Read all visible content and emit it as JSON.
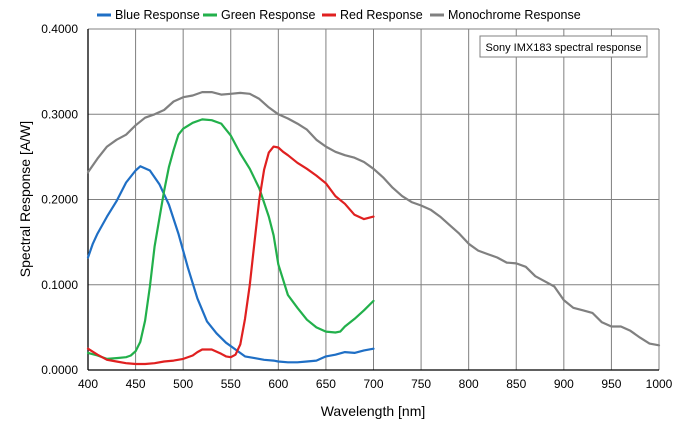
{
  "chart_data": {
    "type": "line",
    "title": "",
    "annotation": "Sony IMX183 spectral response",
    "xlabel": "Wavelength [nm]",
    "ylabel": "Spectral Response [A/W]",
    "xlim": [
      400,
      1000
    ],
    "ylim": [
      0,
      0.4
    ],
    "x_ticks": [
      400,
      450,
      500,
      550,
      600,
      650,
      700,
      750,
      800,
      850,
      900,
      950,
      1000
    ],
    "y_ticks": [
      "0.0000",
      "0.1000",
      "0.2000",
      "0.3000",
      "0.4000"
    ],
    "grid": true,
    "legend_position": "top",
    "series": [
      {
        "name": "Blue Response",
        "color": "#1f6fc5",
        "points": [
          [
            400,
            0.132
          ],
          [
            405,
            0.148
          ],
          [
            410,
            0.16
          ],
          [
            420,
            0.18
          ],
          [
            430,
            0.198
          ],
          [
            440,
            0.22
          ],
          [
            450,
            0.234
          ],
          [
            455,
            0.239
          ],
          [
            465,
            0.234
          ],
          [
            475,
            0.218
          ],
          [
            485,
            0.194
          ],
          [
            495,
            0.16
          ],
          [
            505,
            0.12
          ],
          [
            515,
            0.084
          ],
          [
            525,
            0.057
          ],
          [
            535,
            0.043
          ],
          [
            545,
            0.032
          ],
          [
            555,
            0.024
          ],
          [
            565,
            0.016
          ],
          [
            575,
            0.014
          ],
          [
            585,
            0.012
          ],
          [
            595,
            0.011
          ],
          [
            600,
            0.01
          ],
          [
            610,
            0.009
          ],
          [
            620,
            0.009
          ],
          [
            630,
            0.01
          ],
          [
            640,
            0.011
          ],
          [
            650,
            0.016
          ],
          [
            660,
            0.018
          ],
          [
            670,
            0.021
          ],
          [
            680,
            0.02
          ],
          [
            690,
            0.023
          ],
          [
            700,
            0.025
          ]
        ]
      },
      {
        "name": "Green Response",
        "color": "#22b04b",
        "points": [
          [
            400,
            0.02
          ],
          [
            410,
            0.017
          ],
          [
            420,
            0.013
          ],
          [
            430,
            0.014
          ],
          [
            440,
            0.015
          ],
          [
            445,
            0.017
          ],
          [
            450,
            0.022
          ],
          [
            455,
            0.033
          ],
          [
            460,
            0.058
          ],
          [
            465,
            0.098
          ],
          [
            470,
            0.145
          ],
          [
            475,
            0.178
          ],
          [
            480,
            0.21
          ],
          [
            485,
            0.238
          ],
          [
            490,
            0.258
          ],
          [
            495,
            0.276
          ],
          [
            500,
            0.283
          ],
          [
            510,
            0.29
          ],
          [
            520,
            0.294
          ],
          [
            530,
            0.293
          ],
          [
            540,
            0.289
          ],
          [
            550,
            0.275
          ],
          [
            560,
            0.254
          ],
          [
            570,
            0.236
          ],
          [
            580,
            0.213
          ],
          [
            590,
            0.18
          ],
          [
            595,
            0.158
          ],
          [
            600,
            0.124
          ],
          [
            610,
            0.088
          ],
          [
            620,
            0.073
          ],
          [
            630,
            0.059
          ],
          [
            640,
            0.05
          ],
          [
            650,
            0.045
          ],
          [
            660,
            0.044
          ],
          [
            665,
            0.045
          ],
          [
            670,
            0.051
          ],
          [
            680,
            0.06
          ],
          [
            690,
            0.07
          ],
          [
            700,
            0.081
          ]
        ]
      },
      {
        "name": "Red Response",
        "color": "#e02020",
        "points": [
          [
            400,
            0.025
          ],
          [
            410,
            0.018
          ],
          [
            420,
            0.012
          ],
          [
            430,
            0.01
          ],
          [
            440,
            0.008
          ],
          [
            450,
            0.007
          ],
          [
            460,
            0.007
          ],
          [
            470,
            0.008
          ],
          [
            480,
            0.01
          ],
          [
            490,
            0.011
          ],
          [
            500,
            0.013
          ],
          [
            510,
            0.017
          ],
          [
            515,
            0.021
          ],
          [
            520,
            0.024
          ],
          [
            530,
            0.024
          ],
          [
            540,
            0.019
          ],
          [
            545,
            0.016
          ],
          [
            550,
            0.015
          ],
          [
            555,
            0.018
          ],
          [
            560,
            0.03
          ],
          [
            565,
            0.06
          ],
          [
            570,
            0.1
          ],
          [
            575,
            0.15
          ],
          [
            580,
            0.2
          ],
          [
            585,
            0.235
          ],
          [
            590,
            0.255
          ],
          [
            595,
            0.262
          ],
          [
            600,
            0.261
          ],
          [
            605,
            0.256
          ],
          [
            610,
            0.252
          ],
          [
            620,
            0.243
          ],
          [
            630,
            0.236
          ],
          [
            640,
            0.228
          ],
          [
            650,
            0.219
          ],
          [
            660,
            0.204
          ],
          [
            670,
            0.195
          ],
          [
            680,
            0.182
          ],
          [
            690,
            0.177
          ],
          [
            700,
            0.18
          ]
        ]
      },
      {
        "name": "Monochrome Response",
        "color": "#808080",
        "points": [
          [
            400,
            0.232
          ],
          [
            410,
            0.248
          ],
          [
            420,
            0.262
          ],
          [
            430,
            0.27
          ],
          [
            440,
            0.276
          ],
          [
            450,
            0.287
          ],
          [
            460,
            0.296
          ],
          [
            470,
            0.3
          ],
          [
            480,
            0.305
          ],
          [
            490,
            0.315
          ],
          [
            500,
            0.32
          ],
          [
            510,
            0.322
          ],
          [
            520,
            0.326
          ],
          [
            530,
            0.326
          ],
          [
            540,
            0.323
          ],
          [
            550,
            0.324
          ],
          [
            560,
            0.325
          ],
          [
            570,
            0.324
          ],
          [
            580,
            0.318
          ],
          [
            590,
            0.308
          ],
          [
            600,
            0.3
          ],
          [
            610,
            0.295
          ],
          [
            620,
            0.289
          ],
          [
            630,
            0.282
          ],
          [
            640,
            0.27
          ],
          [
            650,
            0.262
          ],
          [
            660,
            0.256
          ],
          [
            670,
            0.252
          ],
          [
            680,
            0.249
          ],
          [
            690,
            0.244
          ],
          [
            700,
            0.236
          ],
          [
            710,
            0.226
          ],
          [
            720,
            0.214
          ],
          [
            730,
            0.204
          ],
          [
            740,
            0.197
          ],
          [
            750,
            0.193
          ],
          [
            760,
            0.188
          ],
          [
            770,
            0.18
          ],
          [
            780,
            0.17
          ],
          [
            790,
            0.16
          ],
          [
            800,
            0.148
          ],
          [
            810,
            0.14
          ],
          [
            820,
            0.136
          ],
          [
            830,
            0.132
          ],
          [
            840,
            0.126
          ],
          [
            850,
            0.125
          ],
          [
            860,
            0.121
          ],
          [
            870,
            0.11
          ],
          [
            880,
            0.104
          ],
          [
            890,
            0.098
          ],
          [
            900,
            0.082
          ],
          [
            910,
            0.073
          ],
          [
            920,
            0.07
          ],
          [
            930,
            0.067
          ],
          [
            940,
            0.056
          ],
          [
            950,
            0.051
          ],
          [
            960,
            0.051
          ],
          [
            970,
            0.046
          ],
          [
            980,
            0.038
          ],
          [
            990,
            0.031
          ],
          [
            1000,
            0.029
          ]
        ]
      }
    ]
  }
}
